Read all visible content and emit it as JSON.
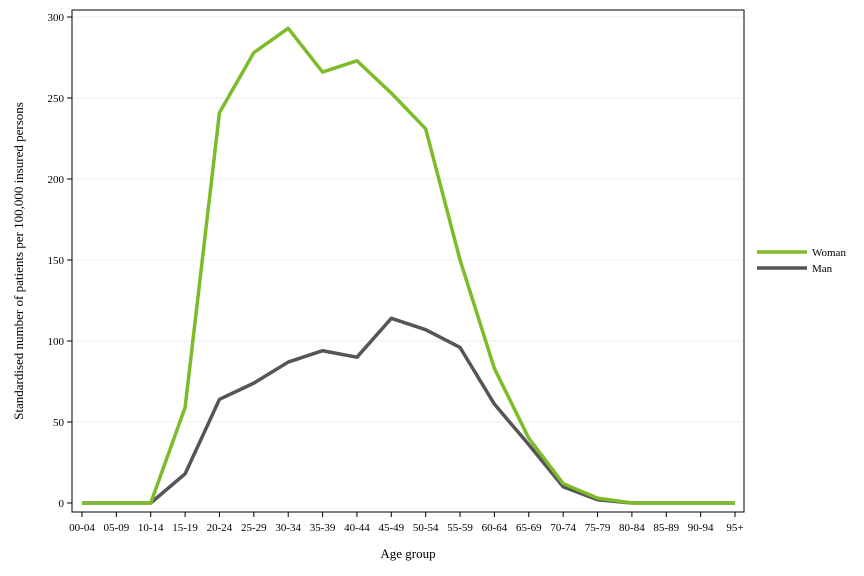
{
  "chart_data": {
    "type": "line",
    "title": "",
    "xlabel": "Age group",
    "ylabel": "Standardised number of patients per 100,000 insured persons",
    "categories": [
      "00-04",
      "05-09",
      "10-14",
      "15-19",
      "20-24",
      "25-29",
      "30-34",
      "35-39",
      "40-44",
      "45-49",
      "50-54",
      "55-59",
      "60-64",
      "65-69",
      "70-74",
      "75-79",
      "80-84",
      "85-89",
      "90-94",
      "95+"
    ],
    "ylim": [
      0,
      300
    ],
    "yticks": [
      "0",
      "50",
      "100",
      "150",
      "200",
      "250",
      "300"
    ],
    "grid": true,
    "legend_position": "right",
    "series": [
      {
        "name": "Woman",
        "color": "#7dbb2a",
        "values": [
          0,
          0,
          0,
          59,
          241,
          278,
          293,
          266,
          273,
          253,
          231,
          150,
          83,
          40,
          12,
          3,
          0,
          0,
          0,
          0
        ]
      },
      {
        "name": "Man",
        "color": "#555555",
        "values": [
          0,
          0,
          0,
          18,
          64,
          74,
          87,
          94,
          90,
          114,
          107,
          96,
          61,
          36,
          10,
          2,
          0,
          0,
          0,
          0
        ]
      }
    ]
  }
}
